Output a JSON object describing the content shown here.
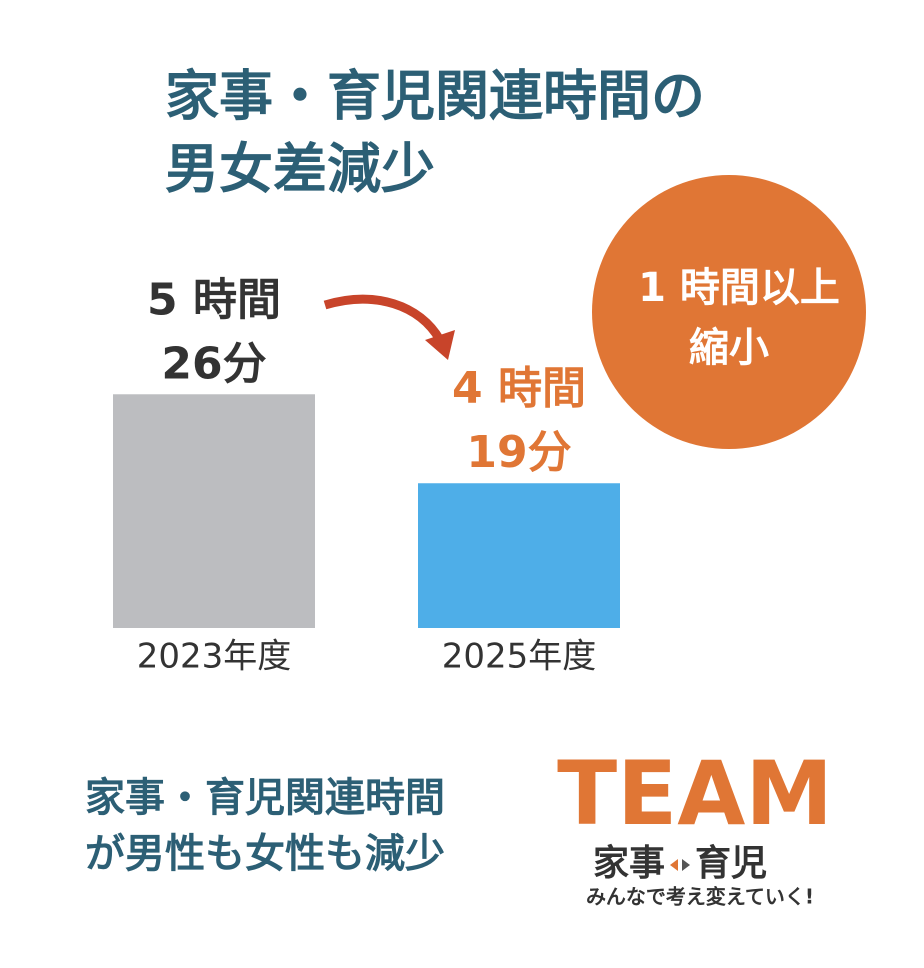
{
  "chart_data": {
    "type": "bar",
    "title": [
      "家事・育児関連時間の",
      "男女差減少"
    ],
    "categories": [
      "2023年度",
      "2025年度"
    ],
    "values": [
      326,
      259
    ],
    "value_labels": [
      [
        "5 時間",
        "26分"
      ],
      [
        "4 時間",
        "19分"
      ]
    ],
    "colors": [
      "#bcbdc0",
      "#4eaee8"
    ],
    "label_colors": [
      "#333333",
      "#e07635"
    ],
    "ylim": [
      150,
      400
    ],
    "badge": [
      "1 時間以上",
      "縮小"
    ],
    "note": [
      "家事・育児関連時間",
      "が男性も女性も減少"
    ],
    "logo": {
      "name": "TEAM",
      "left": "家事",
      "right": "育児",
      "tagline": "みんなで考え変えていく!"
    }
  }
}
